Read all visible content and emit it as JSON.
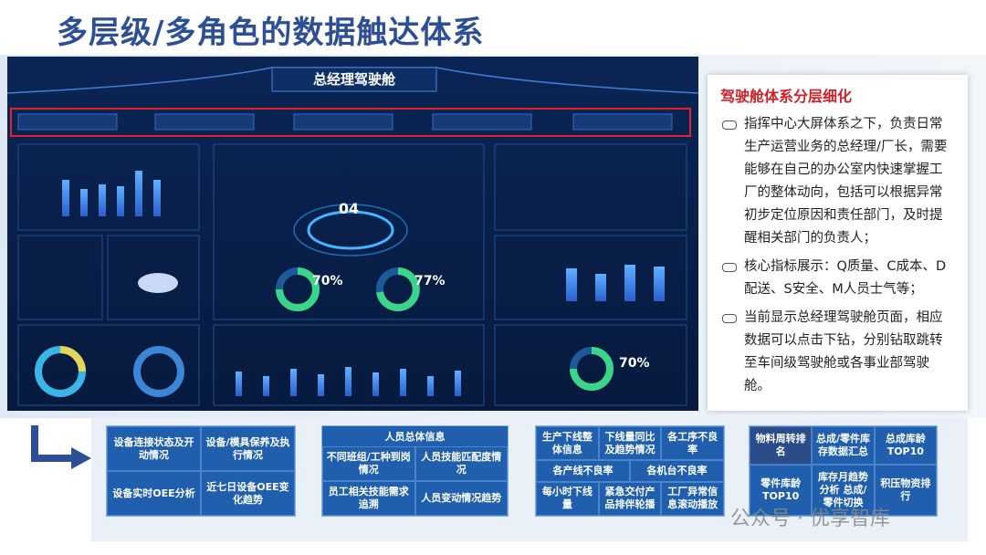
{
  "header": {
    "title": "多层级/多角色的数据触达体系"
  },
  "dashboard": {
    "title": "总经理驾驶舱",
    "center_value": "04",
    "gauges": [
      "70%",
      "77%",
      "70%"
    ]
  },
  "side_panel": {
    "title": "驾驶舱体系分层细化",
    "bullets": [
      "指挥中心大屏体系之下，负责日常生产运营业务的总经理/厂长，需要能够在自己的办公室内快速掌握工厂的整体动向，包括可以根据异常初步定位原因和责任部门，及时提醒相关部门的负责人；",
      "核心指标展示：Q质量、C成本、D配送、S安全、M人员士气等；",
      "当前显示总经理驾驶舱页面，相应数据可以点击下钻，分别钻取跳转至车间级驾驶舱或各事业部驾驶舱。"
    ]
  },
  "modules": [
    {
      "items": [
        "设备连接状态及开动情况",
        "设备/模具保养及执行情况",
        "设备实时OEE分析",
        "近七日设备OEE变化趋势"
      ]
    },
    {
      "header": "人员总体信息",
      "items": [
        "不同班组/工种到岗情况",
        "人员技能匹配度情况",
        "员工相关技能需求追溯",
        "人员变动情况趋势"
      ]
    },
    {
      "items": [
        "生产下线整体信息",
        "下线量同比及趋势情况",
        "各工序不良率",
        "各产线不良率",
        "各机台不良率",
        "每小时下线量",
        "紧急交付产品排伴轮播",
        "工厂异常信息滚动播放"
      ]
    },
    {
      "items": [
        "物料周转排名",
        "总成/零件库存数据汇总",
        "总成库龄TOP10",
        "零件库龄TOP10",
        "库存月趋势分析 总成/零件切换",
        "积压物资排行"
      ]
    }
  ],
  "watermark": "公众号 · 优享智库"
}
